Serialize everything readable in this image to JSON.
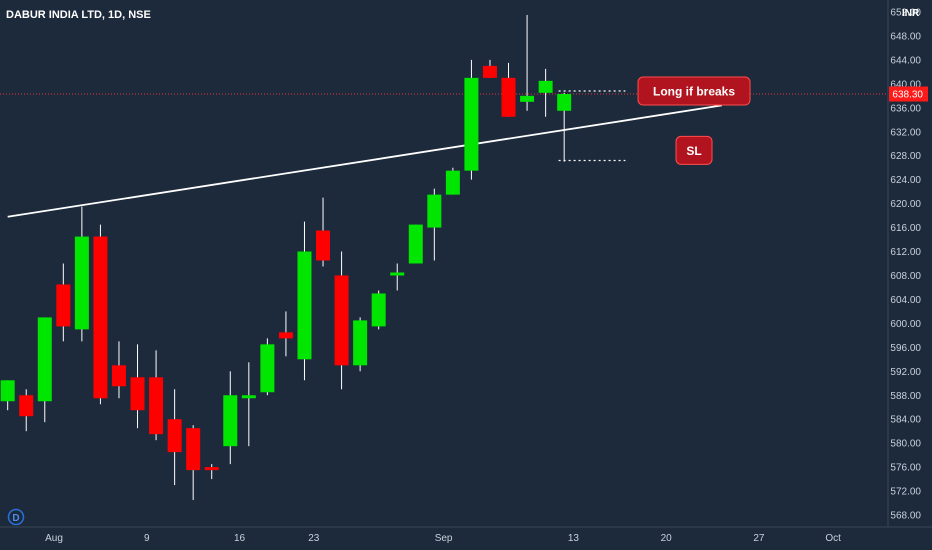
{
  "header": {
    "symbol_title": "DABUR INDIA LTD, 1D, NSE",
    "currency": "INR"
  },
  "badge": {
    "letter": "D"
  },
  "colors": {
    "background": "#1c2a3b",
    "up": "#00e600",
    "down": "#ff0000",
    "annotation": "#b2141f",
    "trendline": "#ffffff",
    "last_price_line": "#ff3b3b"
  },
  "chart_data": {
    "type": "candlestick",
    "title": "DABUR INDIA LTD, 1D, NSE",
    "ylim": [
      566,
      654
    ],
    "y_ticks": [
      652,
      648,
      644,
      640,
      636,
      632,
      628,
      624,
      620,
      616,
      612,
      608,
      604,
      600,
      596,
      592,
      588,
      584,
      580,
      576,
      572,
      568
    ],
    "y_tick_labels": [
      "652.00",
      "648.00",
      "644.00",
      "640.00",
      "636.00",
      "632.00",
      "628.00",
      "624.00",
      "620.00",
      "616.00",
      "612.00",
      "608.00",
      "604.00",
      "600.00",
      "596.00",
      "592.00",
      "588.00",
      "584.00",
      "580.00",
      "576.00",
      "572.00",
      "568.00"
    ],
    "x_labels": [
      {
        "bar": 2.5,
        "label": "Aug"
      },
      {
        "bar": 7.5,
        "label": "9"
      },
      {
        "bar": 12.5,
        "label": "16"
      },
      {
        "bar": 16.5,
        "label": "23"
      },
      {
        "bar": 23.5,
        "label": "Sep"
      },
      {
        "bar": 30.5,
        "label": "13"
      },
      {
        "bar": 35.5,
        "label": "20"
      },
      {
        "bar": 40.5,
        "label": "27"
      },
      {
        "bar": 44.5,
        "label": "Oct"
      }
    ],
    "candles": [
      {
        "o": 587.0,
        "h": 590.5,
        "l": 585.5,
        "c": 590.5
      },
      {
        "o": 588.0,
        "h": 589.0,
        "l": 582.0,
        "c": 584.5
      },
      {
        "o": 587.0,
        "h": 601.0,
        "l": 583.5,
        "c": 601.0
      },
      {
        "o": 606.5,
        "h": 610.0,
        "l": 597.0,
        "c": 599.5
      },
      {
        "o": 599.0,
        "h": 619.5,
        "l": 597.0,
        "c": 614.5
      },
      {
        "o": 614.5,
        "h": 616.5,
        "l": 586.5,
        "c": 587.5
      },
      {
        "o": 593.0,
        "h": 597.0,
        "l": 587.5,
        "c": 589.5
      },
      {
        "o": 591.0,
        "h": 596.5,
        "l": 582.5,
        "c": 585.5
      },
      {
        "o": 591.0,
        "h": 595.5,
        "l": 580.5,
        "c": 581.5
      },
      {
        "o": 584.0,
        "h": 589.0,
        "l": 573.0,
        "c": 578.5
      },
      {
        "o": 582.5,
        "h": 583.0,
        "l": 570.5,
        "c": 575.5
      },
      {
        "o": 576.0,
        "h": 576.5,
        "l": 574.0,
        "c": 575.5
      },
      {
        "o": 579.5,
        "h": 592.0,
        "l": 576.5,
        "c": 588.0
      },
      {
        "o": 588.0,
        "h": 593.5,
        "l": 579.5,
        "c": 588.0
      },
      {
        "o": 588.5,
        "h": 597.5,
        "l": 588.0,
        "c": 596.5
      },
      {
        "o": 598.5,
        "h": 602.0,
        "l": 594.5,
        "c": 597.5
      },
      {
        "o": 594.0,
        "h": 617.0,
        "l": 590.5,
        "c": 612.0
      },
      {
        "o": 615.5,
        "h": 621.0,
        "l": 609.5,
        "c": 610.5
      },
      {
        "o": 608.0,
        "h": 612.0,
        "l": 589.0,
        "c": 593.0
      },
      {
        "o": 593.0,
        "h": 601.0,
        "l": 592.0,
        "c": 600.5
      },
      {
        "o": 599.5,
        "h": 605.5,
        "l": 599.0,
        "c": 605.0
      },
      {
        "o": 608.0,
        "h": 610.0,
        "l": 605.5,
        "c": 608.5
      },
      {
        "o": 610.0,
        "h": 616.5,
        "l": 610.0,
        "c": 616.5
      },
      {
        "o": 616.0,
        "h": 622.5,
        "l": 610.5,
        "c": 621.5
      },
      {
        "o": 621.5,
        "h": 626.0,
        "l": 621.5,
        "c": 625.5
      },
      {
        "o": 625.5,
        "h": 644.0,
        "l": 624.0,
        "c": 641.0
      },
      {
        "o": 643.0,
        "h": 644.0,
        "l": 641.0,
        "c": 641.0
      },
      {
        "o": 641.0,
        "h": 643.5,
        "l": 634.5,
        "c": 634.5
      },
      {
        "o": 637.0,
        "h": 651.5,
        "l": 635.5,
        "c": 638.0
      },
      {
        "o": 638.5,
        "h": 642.5,
        "l": 634.5,
        "c": 640.5
      },
      {
        "o": 635.5,
        "h": 638.5,
        "l": 627.0,
        "c": 638.3
      }
    ],
    "trendline": {
      "x1": 0,
      "y1": 617.8,
      "x2": 38.5,
      "y2": 636.4
    },
    "level_lines": [
      {
        "price": 638.8,
        "x1": 29.7,
        "x2": 33.3
      },
      {
        "price": 627.2,
        "x1": 29.7,
        "x2": 33.3
      }
    ],
    "last_price": {
      "value": 638.3,
      "label": "638.30"
    },
    "annotations": [
      {
        "text": "Long if breaks",
        "bar": 37.0,
        "price": 638.8
      },
      {
        "text": "SL",
        "bar": 37.0,
        "price": 628.9
      }
    ]
  }
}
